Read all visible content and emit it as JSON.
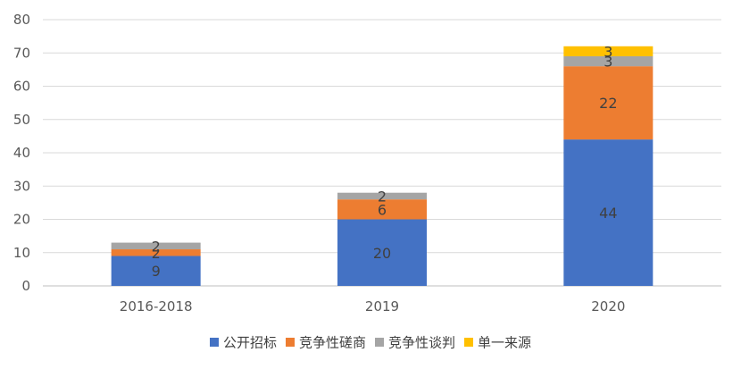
{
  "chart_data": {
    "type": "bar",
    "stacked": true,
    "categories": [
      "2016-2018",
      "2019",
      "2020"
    ],
    "series": [
      {
        "name": "公开招标",
        "values": [
          9,
          20,
          44
        ],
        "color": "#4472C4"
      },
      {
        "name": "竞争性磋商",
        "values": [
          2,
          6,
          22
        ],
        "color": "#ED7D31"
      },
      {
        "name": "竞争性谈判",
        "values": [
          2,
          2,
          3
        ],
        "color": "#A5A5A5"
      },
      {
        "name": "单一来源",
        "values": [
          0,
          0,
          3
        ],
        "color": "#FFC000"
      }
    ],
    "ylim": [
      0,
      80
    ],
    "yticks": [
      0,
      10,
      20,
      30,
      40,
      50,
      60,
      70,
      80
    ],
    "grid": true,
    "legend": "bottom",
    "title": "",
    "xlabel": "",
    "ylabel": ""
  }
}
